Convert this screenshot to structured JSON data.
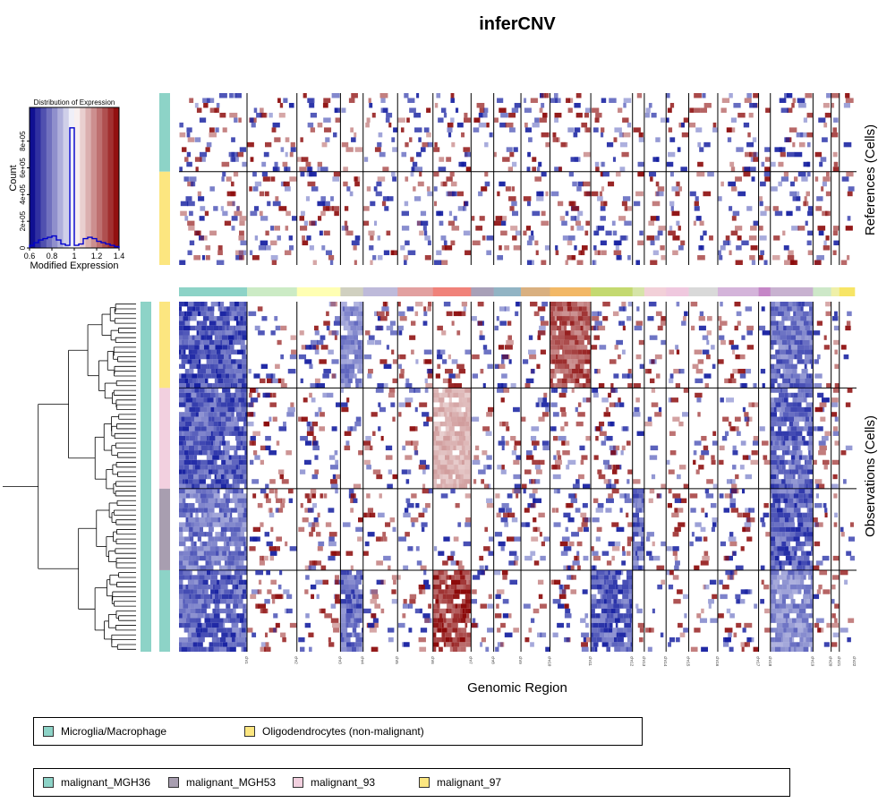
{
  "chart_data": {
    "type": "heatmap",
    "title": "inferCNV",
    "xlabel": "Genomic Region",
    "ylabel_references": "References (Cells)",
    "ylabel_observations": "Observations (Cells)",
    "chromosomes": [
      {
        "name": "chr1",
        "width": 75,
        "color": "#8DD3C7"
      },
      {
        "name": "chr2",
        "width": 55,
        "color": "#CCEBC5"
      },
      {
        "name": "chr3",
        "width": 48,
        "color": "#FFFFB3"
      },
      {
        "name": "chr4",
        "width": 25,
        "color": "#D0D0C0"
      },
      {
        "name": "chr5",
        "width": 38,
        "color": "#BEBADA"
      },
      {
        "name": "chr6",
        "width": 39,
        "color": "#E2A0A0"
      },
      {
        "name": "chr7",
        "width": 42,
        "color": "#F0827A"
      },
      {
        "name": "chr8",
        "width": 25,
        "color": "#A8A0B8"
      },
      {
        "name": "chr9",
        "width": 30,
        "color": "#92B4C4"
      },
      {
        "name": "chr10",
        "width": 32,
        "color": "#D9B080"
      },
      {
        "name": "chr11",
        "width": 45,
        "color": "#F2B866"
      },
      {
        "name": "chr12",
        "width": 46,
        "color": "#C4D970"
      },
      {
        "name": "chr13",
        "width": 13,
        "color": "#D6E4A8"
      },
      {
        "name": "chr14",
        "width": 24,
        "color": "#F2D0D8"
      },
      {
        "name": "chr15",
        "width": 25,
        "color": "#EFC8DE"
      },
      {
        "name": "chr16",
        "width": 32,
        "color": "#D9D9D9"
      },
      {
        "name": "chr17",
        "width": 45,
        "color": "#D4B4DA"
      },
      {
        "name": "chr18",
        "width": 13,
        "color": "#C586C7"
      },
      {
        "name": "chr19",
        "width": 47,
        "color": "#C8B2D0"
      },
      {
        "name": "chr20",
        "width": 20,
        "color": "#CDE8C8"
      },
      {
        "name": "chr21",
        "width": 9,
        "color": "#EFF0A8"
      },
      {
        "name": "chr22",
        "width": 17,
        "color": "#F7E566"
      }
    ],
    "references": [
      {
        "label": "Microglia/Macrophage",
        "color": "#8DD3C7",
        "rows": 16
      },
      {
        "label": "Oligodendrocytes (non-malignant)",
        "color": "#FCE680",
        "rows": 19
      }
    ],
    "observations": [
      {
        "label": "malignant_97",
        "color": "#FCE680",
        "rows": 18,
        "events": {
          "chr1": -0.9,
          "chr4": -0.6,
          "chr11": 0.8,
          "chr19": -0.75
        }
      },
      {
        "label": "malignant_93",
        "color": "#F2D0DF",
        "rows": 21,
        "events": {
          "chr1": -0.85,
          "chr7": 0.35,
          "chr19": -0.8
        }
      },
      {
        "label": "malignant_MGH53",
        "color": "#A89EB0",
        "rows": 17,
        "events": {
          "chr1": -0.7,
          "chr13": -0.8,
          "chr19": -0.85
        }
      },
      {
        "label": "malignant_MGH36",
        "color": "#8DD3C7",
        "rows": 17,
        "events": {
          "chr1": -0.85,
          "chr4": -0.8,
          "chr7": 0.95,
          "chr12": -0.85,
          "chr19": -0.6
        }
      }
    ],
    "color_key": {
      "title": "Distribution of Expression",
      "xlabel": "Modified Expression",
      "ylabel": "Count",
      "xlim": [
        0.6,
        1.4
      ],
      "xticks": [
        "0.6",
        "0.8",
        "1",
        "1.2",
        "1.4"
      ],
      "yticks": [
        "0",
        "2e+05",
        "4e+05",
        "6e+05",
        "8e+05"
      ],
      "ylim": [
        0,
        1000000
      ],
      "histogram": [
        {
          "x": 0.6,
          "count": 20000
        },
        {
          "x": 0.64,
          "count": 40000
        },
        {
          "x": 0.68,
          "count": 60000
        },
        {
          "x": 0.72,
          "count": 70000
        },
        {
          "x": 0.76,
          "count": 80000
        },
        {
          "x": 0.8,
          "count": 90000
        },
        {
          "x": 0.84,
          "count": 60000
        },
        {
          "x": 0.88,
          "count": 30000
        },
        {
          "x": 0.92,
          "count": 20000
        },
        {
          "x": 0.96,
          "count": 900000
        },
        {
          "x": 1.0,
          "count": 20000
        },
        {
          "x": 1.04,
          "count": 30000
        },
        {
          "x": 1.08,
          "count": 70000
        },
        {
          "x": 1.12,
          "count": 80000
        },
        {
          "x": 1.16,
          "count": 70000
        },
        {
          "x": 1.2,
          "count": 50000
        },
        {
          "x": 1.24,
          "count": 40000
        },
        {
          "x": 1.28,
          "count": 30000
        },
        {
          "x": 1.32,
          "count": 20000
        },
        {
          "x": 1.36,
          "count": 10000
        }
      ]
    }
  },
  "legend_references": {
    "items": [
      {
        "label": "Microglia/Macrophage",
        "color": "#8DD3C7"
      },
      {
        "label": "Oligodendrocytes (non-malignant)",
        "color": "#FCE680"
      }
    ]
  },
  "legend_observations": {
    "items": [
      {
        "label": "malignant_MGH36",
        "color": "#8DD3C7"
      },
      {
        "label": "malignant_MGH53",
        "color": "#A89EB0"
      },
      {
        "label": "malignant_93",
        "color": "#F2D0DF"
      },
      {
        "label": "malignant_97",
        "color": "#FCE680"
      }
    ]
  },
  "annotation_bar_color": "#8DD3C7"
}
